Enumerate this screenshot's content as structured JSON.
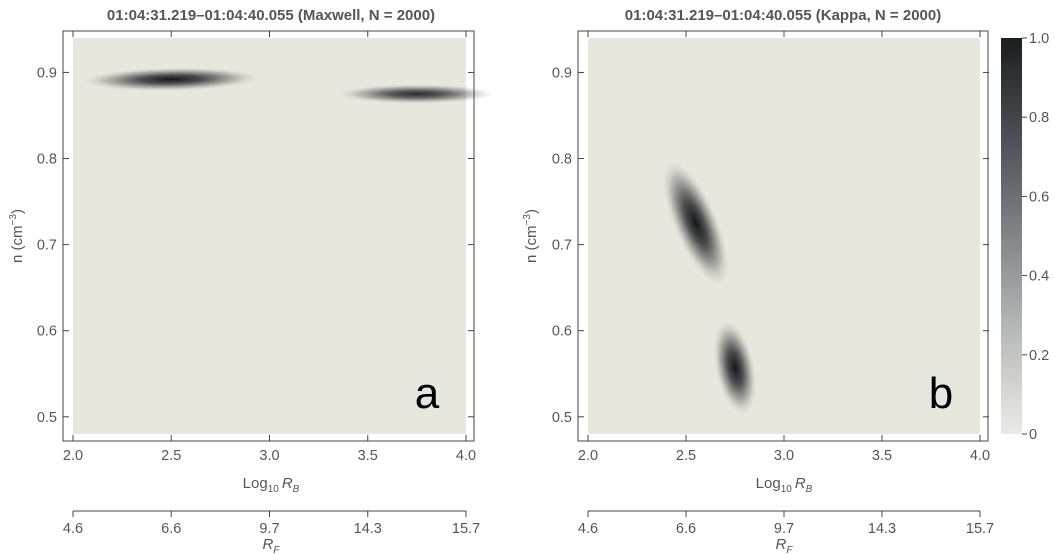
{
  "chart_data": [
    {
      "type": "heatmap",
      "panel": "a",
      "title": "01:04:31.219–01:04:40.055 (Maxwell, N = 2000)",
      "xlabel": "Log",
      "xlabel_sub": "10",
      "xlabel_var": "R",
      "xlabel_var_sub": "B",
      "ylabel": "n (cm",
      "ylabel_sup": "−3",
      "ylabel_close": ")",
      "xlim": [
        2.0,
        4.0
      ],
      "ylim": [
        0.48,
        0.94
      ],
      "xticks": [
        "2.0",
        "2.5",
        "3.0",
        "3.5",
        "4.0"
      ],
      "yticks": [
        "0.5",
        "0.6",
        "0.7",
        "0.8",
        "0.9"
      ],
      "secondary_axis": {
        "label_var": "R",
        "label_sub": "F",
        "ticks": [
          "4.6",
          "6.6",
          "9.7",
          "14.3",
          "15.7"
        ]
      },
      "blobs": [
        {
          "x": 2.5,
          "y": 0.892,
          "sx": 0.2,
          "sy": 0.006,
          "peak": 1.0,
          "tilt": -0.02
        },
        {
          "x": 3.75,
          "y": 0.875,
          "sx": 0.18,
          "sy": 0.005,
          "peak": 0.9,
          "tilt": 0.0
        }
      ]
    },
    {
      "type": "heatmap",
      "panel": "b",
      "title": "01:04:31.219–01:04:40.055 (Kappa, N = 2000)",
      "xlabel": "Log",
      "xlabel_sub": "10",
      "xlabel_var": "R",
      "xlabel_var_sub": "B",
      "ylabel": "n (cm",
      "ylabel_sup": "−3",
      "ylabel_close": ")",
      "xlim": [
        2.0,
        4.0
      ],
      "ylim": [
        0.48,
        0.94
      ],
      "xticks": [
        "2.0",
        "2.5",
        "3.0",
        "3.5",
        "4.0"
      ],
      "yticks": [
        "0.5",
        "0.6",
        "0.7",
        "0.8",
        "0.9"
      ],
      "secondary_axis": {
        "label_var": "R",
        "label_sub": "F",
        "ticks": [
          "4.6",
          "6.6",
          "9.7",
          "14.3",
          "15.7"
        ]
      },
      "blobs": [
        {
          "x": 2.55,
          "y": 0.725,
          "sx": 0.05,
          "sy": 0.035,
          "peak": 1.0,
          "tilt": -0.4
        },
        {
          "x": 2.75,
          "y": 0.557,
          "sx": 0.045,
          "sy": 0.025,
          "peak": 1.0,
          "tilt": -0.2
        }
      ],
      "colorbar": {
        "range": [
          0,
          1.0
        ],
        "ticks": [
          "0",
          "0.2",
          "0.4",
          "0.6",
          "0.8",
          "1.0"
        ]
      }
    }
  ]
}
